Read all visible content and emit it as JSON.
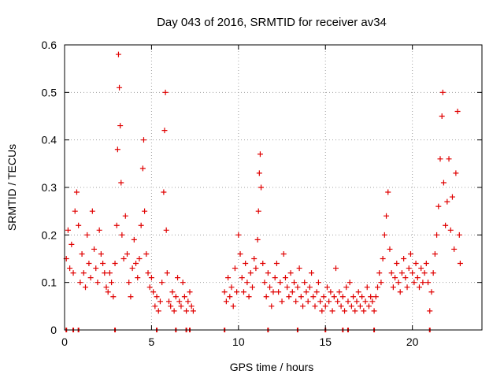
{
  "chart_data": {
    "type": "scatter",
    "title": "Day 043 of 2016, SRMTID for receiver av34",
    "xlabel": "GPS time / hours",
    "ylabel": "SRMTID / TECUs",
    "xlim": [
      0,
      24
    ],
    "ylim": [
      0,
      0.6
    ],
    "xticks": [
      0,
      5,
      10,
      15,
      20
    ],
    "xtick_labels": [
      "0",
      "5",
      "10",
      "15",
      "20"
    ],
    "yticks": [
      0,
      0.1,
      0.2,
      0.3,
      0.4,
      0.5,
      0.6
    ],
    "ytick_labels": [
      "0",
      "0.1",
      "0.2",
      "0.3",
      "0.4",
      "0.5",
      "0.6"
    ],
    "grid": true,
    "marker": "+",
    "color": "#e00000",
    "series": [
      {
        "name": "SRMTID",
        "points": [
          [
            0.1,
            0.15
          ],
          [
            0.2,
            0.21
          ],
          [
            0.3,
            0.13
          ],
          [
            0.4,
            0.18
          ],
          [
            0.5,
            0.12
          ],
          [
            0.6,
            0.25
          ],
          [
            0.7,
            0.29
          ],
          [
            0.8,
            0.22
          ],
          [
            0.9,
            0.1
          ],
          [
            1.0,
            0.16
          ],
          [
            1.1,
            0.12
          ],
          [
            1.2,
            0.09
          ],
          [
            1.3,
            0.2
          ],
          [
            1.4,
            0.14
          ],
          [
            1.5,
            0.11
          ],
          [
            1.6,
            0.25
          ],
          [
            1.7,
            0.17
          ],
          [
            1.8,
            0.13
          ],
          [
            1.9,
            0.1
          ],
          [
            2.0,
            0.21
          ],
          [
            2.1,
            0.16
          ],
          [
            2.2,
            0.14
          ],
          [
            2.3,
            0.12
          ],
          [
            2.4,
            0.09
          ],
          [
            2.5,
            0.08
          ],
          [
            2.6,
            0.12
          ],
          [
            2.7,
            0.1
          ],
          [
            2.8,
            0.07
          ],
          [
            2.9,
            0.14
          ],
          [
            3.0,
            0.22
          ],
          [
            3.05,
            0.38
          ],
          [
            3.1,
            0.58
          ],
          [
            3.15,
            0.51
          ],
          [
            3.2,
            0.43
          ],
          [
            3.25,
            0.31
          ],
          [
            3.3,
            0.2
          ],
          [
            3.4,
            0.15
          ],
          [
            3.5,
            0.24
          ],
          [
            3.6,
            0.16
          ],
          [
            3.7,
            0.1
          ],
          [
            3.8,
            0.07
          ],
          [
            3.9,
            0.13
          ],
          [
            4.0,
            0.19
          ],
          [
            4.1,
            0.14
          ],
          [
            4.2,
            0.11
          ],
          [
            4.3,
            0.15
          ],
          [
            4.4,
            0.22
          ],
          [
            4.5,
            0.34
          ],
          [
            4.55,
            0.4
          ],
          [
            4.6,
            0.25
          ],
          [
            4.7,
            0.16
          ],
          [
            4.8,
            0.12
          ],
          [
            4.9,
            0.09
          ],
          [
            5.0,
            0.11
          ],
          [
            5.1,
            0.08
          ],
          [
            5.2,
            0.05
          ],
          [
            5.3,
            0.07
          ],
          [
            5.4,
            0.04
          ],
          [
            5.5,
            0.06
          ],
          [
            5.6,
            0.1
          ],
          [
            5.7,
            0.29
          ],
          [
            5.75,
            0.42
          ],
          [
            5.8,
            0.5
          ],
          [
            5.85,
            0.21
          ],
          [
            5.9,
            0.12
          ],
          [
            6.0,
            0.06
          ],
          [
            6.1,
            0.05
          ],
          [
            6.2,
            0.08
          ],
          [
            6.3,
            0.04
          ],
          [
            6.4,
            0.07
          ],
          [
            6.5,
            0.11
          ],
          [
            6.6,
            0.06
          ],
          [
            6.7,
            0.05
          ],
          [
            6.8,
            0.1
          ],
          [
            6.9,
            0.07
          ],
          [
            7.0,
            0.04
          ],
          [
            7.1,
            0.06
          ],
          [
            7.2,
            0.08
          ],
          [
            7.3,
            0.05
          ],
          [
            7.4,
            0.04
          ],
          [
            9.2,
            0.08
          ],
          [
            9.3,
            0.06
          ],
          [
            9.4,
            0.11
          ],
          [
            9.5,
            0.07
          ],
          [
            9.6,
            0.09
          ],
          [
            9.7,
            0.05
          ],
          [
            9.8,
            0.13
          ],
          [
            9.9,
            0.08
          ],
          [
            10.0,
            0.2
          ],
          [
            10.1,
            0.16
          ],
          [
            10.2,
            0.11
          ],
          [
            10.3,
            0.08
          ],
          [
            10.4,
            0.14
          ],
          [
            10.5,
            0.1
          ],
          [
            10.6,
            0.07
          ],
          [
            10.7,
            0.12
          ],
          [
            10.8,
            0.09
          ],
          [
            10.9,
            0.15
          ],
          [
            11.0,
            0.13
          ],
          [
            11.1,
            0.19
          ],
          [
            11.15,
            0.25
          ],
          [
            11.2,
            0.33
          ],
          [
            11.25,
            0.37
          ],
          [
            11.3,
            0.3
          ],
          [
            11.4,
            0.14
          ],
          [
            11.5,
            0.1
          ],
          [
            11.6,
            0.07
          ],
          [
            11.7,
            0.12
          ],
          [
            11.8,
            0.09
          ],
          [
            11.9,
            0.05
          ],
          [
            12.0,
            0.08
          ],
          [
            12.1,
            0.11
          ],
          [
            12.2,
            0.14
          ],
          [
            12.3,
            0.08
          ],
          [
            12.4,
            0.1
          ],
          [
            12.5,
            0.06
          ],
          [
            12.6,
            0.16
          ],
          [
            12.7,
            0.11
          ],
          [
            12.8,
            0.09
          ],
          [
            12.9,
            0.07
          ],
          [
            13.0,
            0.12
          ],
          [
            13.1,
            0.08
          ],
          [
            13.2,
            0.1
          ],
          [
            13.3,
            0.06
          ],
          [
            13.4,
            0.09
          ],
          [
            13.5,
            0.13
          ],
          [
            13.6,
            0.07
          ],
          [
            13.7,
            0.05
          ],
          [
            13.8,
            0.1
          ],
          [
            13.9,
            0.08
          ],
          [
            14.0,
            0.06
          ],
          [
            14.1,
            0.09
          ],
          [
            14.2,
            0.12
          ],
          [
            14.3,
            0.07
          ],
          [
            14.4,
            0.05
          ],
          [
            14.5,
            0.08
          ],
          [
            14.6,
            0.1
          ],
          [
            14.7,
            0.06
          ],
          [
            14.8,
            0.04
          ],
          [
            14.9,
            0.07
          ],
          [
            15.0,
            0.05
          ],
          [
            15.1,
            0.09
          ],
          [
            15.2,
            0.06
          ],
          [
            15.3,
            0.08
          ],
          [
            15.4,
            0.04
          ],
          [
            15.5,
            0.07
          ],
          [
            15.6,
            0.13
          ],
          [
            15.7,
            0.06
          ],
          [
            15.8,
            0.08
          ],
          [
            15.9,
            0.05
          ],
          [
            16.0,
            0.07
          ],
          [
            16.1,
            0.04
          ],
          [
            16.2,
            0.09
          ],
          [
            16.3,
            0.06
          ],
          [
            16.4,
            0.1
          ],
          [
            16.5,
            0.05
          ],
          [
            16.6,
            0.07
          ],
          [
            16.7,
            0.04
          ],
          [
            16.8,
            0.06
          ],
          [
            16.9,
            0.08
          ],
          [
            17.0,
            0.05
          ],
          [
            17.1,
            0.07
          ],
          [
            17.2,
            0.04
          ],
          [
            17.3,
            0.06
          ],
          [
            17.4,
            0.09
          ],
          [
            17.5,
            0.05
          ],
          [
            17.6,
            0.07
          ],
          [
            17.7,
            0.06
          ],
          [
            17.8,
            0.04
          ],
          [
            17.9,
            0.07
          ],
          [
            18.0,
            0.09
          ],
          [
            18.1,
            0.12
          ],
          [
            18.2,
            0.1
          ],
          [
            18.3,
            0.15
          ],
          [
            18.4,
            0.2
          ],
          [
            18.5,
            0.24
          ],
          [
            18.6,
            0.29
          ],
          [
            18.7,
            0.17
          ],
          [
            18.8,
            0.12
          ],
          [
            18.9,
            0.09
          ],
          [
            19.0,
            0.11
          ],
          [
            19.1,
            0.14
          ],
          [
            19.2,
            0.1
          ],
          [
            19.3,
            0.08
          ],
          [
            19.4,
            0.12
          ],
          [
            19.5,
            0.15
          ],
          [
            19.6,
            0.11
          ],
          [
            19.7,
            0.09
          ],
          [
            19.8,
            0.13
          ],
          [
            19.9,
            0.16
          ],
          [
            20.0,
            0.12
          ],
          [
            20.1,
            0.1
          ],
          [
            20.2,
            0.14
          ],
          [
            20.3,
            0.11
          ],
          [
            20.4,
            0.09
          ],
          [
            20.5,
            0.13
          ],
          [
            20.6,
            0.1
          ],
          [
            20.7,
            0.12
          ],
          [
            20.8,
            0.14
          ],
          [
            20.9,
            0.1
          ],
          [
            21.0,
            0.04
          ],
          [
            21.1,
            0.08
          ],
          [
            21.2,
            0.12
          ],
          [
            21.3,
            0.16
          ],
          [
            21.4,
            0.2
          ],
          [
            21.5,
            0.26
          ],
          [
            21.6,
            0.36
          ],
          [
            21.7,
            0.45
          ],
          [
            21.75,
            0.5
          ],
          [
            21.8,
            0.31
          ],
          [
            21.9,
            0.22
          ],
          [
            22.0,
            0.27
          ],
          [
            22.1,
            0.36
          ],
          [
            22.2,
            0.21
          ],
          [
            22.3,
            0.28
          ],
          [
            22.4,
            0.17
          ],
          [
            22.5,
            0.33
          ],
          [
            22.6,
            0.46
          ],
          [
            22.7,
            0.2
          ],
          [
            22.75,
            0.14
          ]
        ]
      }
    ],
    "baseline_x": [
      0.1,
      0.5,
      0.8,
      2.9,
      5.3,
      6.4,
      7.0,
      7.2,
      9.2,
      11.7,
      13.4,
      15.0,
      16.0,
      16.3,
      17.8,
      21.0
    ]
  }
}
